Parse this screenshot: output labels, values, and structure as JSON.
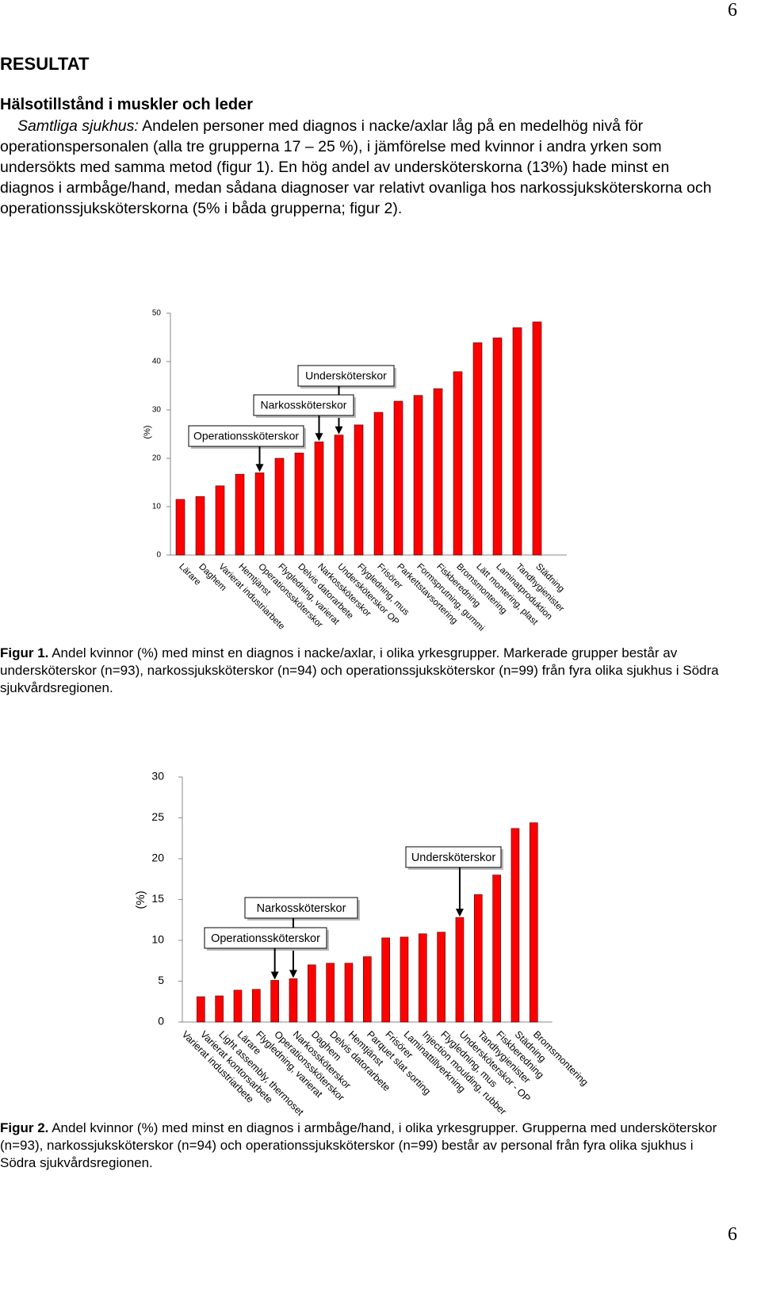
{
  "page_number": "6",
  "heading": "RESULTAT",
  "subheading": "Hälsotillstånd i muskler och leder",
  "paragraph": {
    "lead": "Samtliga sjukhus:",
    "text": " Andelen personer med diagnos i nacke/axlar låg på en medelhög nivå för operationspersonalen (alla tre grupperna 17 – 25 %), i jämförelse med kvinnor i andra yrken som undersökts med samma metod (figur 1). En hög andel av undersköterskorna (13%) hade minst en diagnos i armbåge/hand, medan sådana diagnoser var relativt ovanliga hos narkossjuksköterskorna och operationssjuksköterskorna (5% i båda grupperna; figur 2)."
  },
  "figures": [
    {
      "label": "Figur 1.",
      "text": " Andel kvinnor (%) med minst en diagnos i nacke/axlar, i olika yrkesgrupper. Markerade grupper består av undersköterskor (n=93), narkossjuksköterskor (n=94) och operationssjuksköterskor (n=99) från fyra olika sjukhus i Södra sjukvårdsregionen."
    },
    {
      "label": "Figur 2.",
      "text": " Andel kvinnor (%) med minst en diagnos i armbåge/hand, i olika yrkesgrupper. Grupperna med undersköterskor (n=93), narkossjuksköterskor (n=94) och operationssjuksköterskor (n=99) består av personal från fyra olika sjukhus i Södra sjukvårdsregionen."
    }
  ],
  "chart_data": [
    {
      "type": "bar",
      "y_label": "(%)",
      "color": "#ff0000",
      "categories": [
        "Lärare",
        "Daghem",
        "Varierat industriarbete",
        "Hemtjänst",
        "Operationssköterskor",
        "Flygledning, varierat",
        "Delvis datorarbete",
        "Narkossköterskor",
        "Undersköterskor OP",
        "Flygledning, mus",
        "Frisörer",
        "Parkettstavsortering",
        "Formsprutning, gummi",
        "Fiskberedning",
        "Bromsmontering",
        "Lätt montering, plast",
        "Laminatproduktion",
        "Tandhygienister",
        "Städning"
      ],
      "values": [
        11.5,
        12.1,
        14.3,
        16.7,
        17.0,
        20.0,
        21.1,
        23.4,
        24.8,
        26.9,
        29.5,
        31.8,
        33.0,
        34.4,
        37.9,
        43.9,
        44.9,
        47.0,
        48.2
      ],
      "ylim": [
        0,
        50
      ],
      "yticks": [
        0,
        10,
        20,
        30,
        40,
        50
      ],
      "annotations": [
        "Undersköterskor",
        "Narkossköterskor",
        "Operationssköterskor"
      ]
    },
    {
      "type": "bar",
      "y_label": "(%)",
      "color": "#ff0000",
      "categories": [
        "Varierat industriarbete",
        "Varierat kontorsarbete",
        "Light assembly, thermoset",
        "Lärare",
        "Flygledning, varierat",
        "Operationssköterskor",
        "Narkossköterskor",
        "Daghem",
        "Delvis datorarbete",
        "Hemtjänst",
        "Parquet slat sorting",
        "Frisörer",
        "Laminattillverkning",
        "Injection moulding, rubber",
        "Flygledning, mus",
        "Undersköterskor - OP",
        "Tandhygienister",
        "Fiskberedning",
        "Städning",
        "Bromsmontering"
      ],
      "values": [
        0,
        3.1,
        3.2,
        3.9,
        4.0,
        5.1,
        5.3,
        7.0,
        7.2,
        7.2,
        8.0,
        10.3,
        10.4,
        10.8,
        11.0,
        12.8,
        15.6,
        18.0,
        23.7,
        24.4
      ],
      "ylim": [
        0,
        30
      ],
      "yticks": [
        0,
        5,
        10,
        15,
        20,
        25,
        30
      ],
      "annotations": [
        "Undersköterskor",
        "Narkossköterskor",
        "Operationssköterskor"
      ]
    }
  ]
}
